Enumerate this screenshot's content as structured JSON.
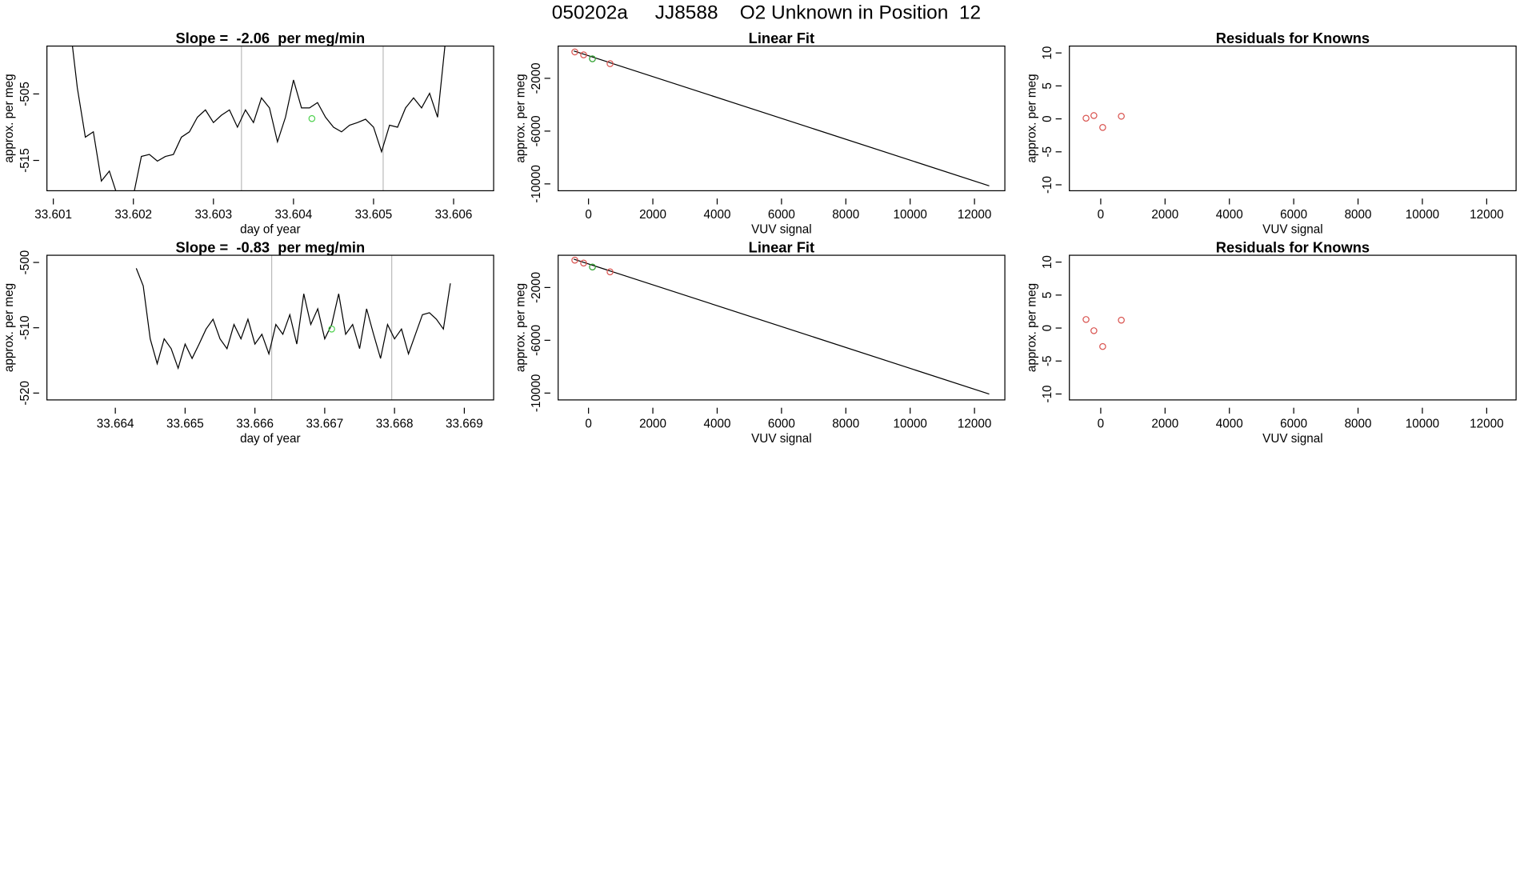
{
  "title": "050202a     JJ8588    O2 Unknown in Position  12",
  "chart_data": [
    {
      "type": "line",
      "title": "Slope =  -2.06  per meg/min",
      "xlabel": "day of year",
      "ylabel": "approx. per meg",
      "xlim": [
        33.60092,
        33.6065
      ],
      "ylim": [
        -519.56,
        -497.8
      ],
      "xticks": [
        33.601,
        33.602,
        33.603,
        33.604,
        33.605,
        33.606
      ],
      "yticks": [
        -505,
        -515
      ],
      "vlines": [
        33.60335,
        33.60512
      ],
      "vline_color": "#bbbbbb",
      "series": [
        {
          "color": "#000000",
          "mode": "line",
          "x": [
            33.6012,
            33.6013,
            33.6014,
            33.6015,
            33.6016,
            33.6017,
            33.6018,
            33.6019,
            33.602,
            33.6021,
            33.6022,
            33.6023,
            33.6024,
            33.6025,
            33.6026,
            33.6027,
            33.6028,
            33.6029,
            33.603,
            33.6031,
            33.6032,
            33.6033,
            33.6034,
            33.6035,
            33.6036,
            33.6037,
            33.6038,
            33.6039,
            33.604,
            33.6041,
            33.6042,
            33.6043,
            33.6044,
            33.6045,
            33.6046,
            33.6047,
            33.6048,
            33.6049,
            33.605,
            33.6051,
            33.6052,
            33.6053,
            33.6054,
            33.6055,
            33.6056,
            33.6057,
            33.6058,
            33.6059
          ],
          "values": [
            -493.8,
            -504.1,
            -511.5,
            -510.7,
            -518.1,
            -516.6,
            -520.3,
            -520.3,
            -520.3,
            -514.4,
            -514.1,
            -515.1,
            -514.4,
            -514.1,
            -511.5,
            -510.7,
            -508.5,
            -507.4,
            -509.3,
            -508.2,
            -507.4,
            -510.0,
            -507.4,
            -509.3,
            -505.6,
            -507.1,
            -512.2,
            -508.5,
            -502.9,
            -507.1,
            -507.1,
            -506.3,
            -508.5,
            -510.0,
            -510.7,
            -509.7,
            -509.3,
            -508.8,
            -510.0,
            -513.7,
            -509.7,
            -510.0,
            -507.1,
            -505.6,
            -507.1,
            -504.9,
            -508.5,
            -496.8
          ]
        },
        {
          "color": "#4fd14f",
          "mode": "points",
          "x": [
            33.60423
          ],
          "values": [
            -508.7
          ]
        }
      ]
    },
    {
      "type": "scatter",
      "title": "Linear Fit",
      "xlabel": "VUV signal",
      "ylabel": "approx. per meg",
      "xlim": [
        -944,
        12944
      ],
      "ylim": [
        -10519,
        444
      ],
      "xticks": [
        0,
        2000,
        4000,
        6000,
        8000,
        10000,
        12000
      ],
      "yticks": [
        -2000,
        -6000,
        -10000
      ],
      "series": [
        {
          "color": "#000000",
          "mode": "line",
          "x": [
            -457,
            12458
          ],
          "values": [
            74,
            -10148
          ]
        },
        {
          "color": "#d9534f",
          "mode": "points",
          "x": [
            -426,
            -152,
            670
          ],
          "values": [
            0,
            -222,
            -889
          ]
        },
        {
          "color": "#2ca02c",
          "mode": "points",
          "x": [
            122
          ],
          "values": [
            -519
          ]
        }
      ]
    },
    {
      "type": "scatter",
      "title": "Residuals for Knowns",
      "xlabel": "VUV signal",
      "ylabel": "approx. per meg",
      "xlim": [
        -975,
        12914
      ],
      "ylim": [
        -10.9,
        11.04
      ],
      "xticks": [
        0,
        2000,
        4000,
        6000,
        8000,
        10000,
        12000
      ],
      "yticks": [
        -10,
        -5,
        0,
        5,
        10
      ],
      "series": [
        {
          "color": "#d9534f",
          "mode": "points",
          "x": [
            -457,
            -213,
            61,
            640
          ],
          "values": [
            0.1,
            0.5,
            -1.3,
            0.4
          ]
        }
      ]
    },
    {
      "type": "line",
      "title": "Slope =  -0.83  per meg/min",
      "xlabel": "day of year",
      "ylabel": "approx. per meg",
      "xlim": [
        33.66302,
        33.66942
      ],
      "ylim": [
        -521.05,
        -498.9
      ],
      "xticks": [
        33.664,
        33.665,
        33.666,
        33.667,
        33.668,
        33.669
      ],
      "yticks": [
        -500,
        -510,
        -520
      ],
      "vlines": [
        33.66624,
        33.66796
      ],
      "vline_color": "#bbbbbb",
      "series": [
        {
          "color": "#000000",
          "mode": "line",
          "x": [
            33.6643,
            33.6644,
            33.6645,
            33.6646,
            33.6647,
            33.6648,
            33.6649,
            33.665,
            33.6651,
            33.6652,
            33.6653,
            33.6654,
            33.6655,
            33.6656,
            33.6657,
            33.6658,
            33.6659,
            33.666,
            33.6661,
            33.6662,
            33.6663,
            33.6664,
            33.6665,
            33.6666,
            33.6667,
            33.6668,
            33.6669,
            33.667,
            33.6671,
            33.6672,
            33.6673,
            33.6674,
            33.6675,
            33.6676,
            33.6677,
            33.6678,
            33.6679,
            33.668,
            33.6681,
            33.6682,
            33.6683,
            33.6684,
            33.6685,
            33.6686,
            33.6687,
            33.6688
          ],
          "values": [
            -500.9,
            -503.6,
            -511.7,
            -515.5,
            -511.7,
            -513.2,
            -516.2,
            -512.5,
            -514.7,
            -512.5,
            -510.2,
            -508.7,
            -511.7,
            -513.2,
            -509.5,
            -511.7,
            -508.7,
            -512.5,
            -511.0,
            -514.0,
            -509.5,
            -511.0,
            -508.0,
            -512.5,
            -504.8,
            -509.5,
            -507.1,
            -511.7,
            -509.5,
            -504.8,
            -511.0,
            -509.5,
            -513.2,
            -507.1,
            -511.0,
            -514.7,
            -509.5,
            -511.7,
            -510.2,
            -514.0,
            -511.0,
            -508.0,
            -507.7,
            -508.7,
            -510.2,
            -503.2
          ]
        },
        {
          "color": "#4fd14f",
          "mode": "points",
          "x": [
            33.6671
          ],
          "values": [
            -510.2
          ]
        }
      ]
    },
    {
      "type": "scatter",
      "title": "Linear Fit",
      "xlabel": "VUV signal",
      "ylabel": "approx. per meg",
      "xlim": [
        -944,
        12944
      ],
      "ylim": [
        -10519,
        444
      ],
      "xticks": [
        0,
        2000,
        4000,
        6000,
        8000,
        10000,
        12000
      ],
      "yticks": [
        -2000,
        -6000,
        -10000
      ],
      "series": [
        {
          "color": "#000000",
          "mode": "line",
          "x": [
            -457,
            12458
          ],
          "values": [
            148,
            -10074
          ]
        },
        {
          "color": "#d9534f",
          "mode": "points",
          "x": [
            -426,
            -152,
            670
          ],
          "values": [
            74,
            -148,
            -815
          ]
        },
        {
          "color": "#2ca02c",
          "mode": "points",
          "x": [
            122
          ],
          "values": [
            -444
          ]
        }
      ]
    },
    {
      "type": "scatter",
      "title": "Residuals for Knowns",
      "xlabel": "VUV signal",
      "ylabel": "approx. per meg",
      "xlim": [
        -975,
        12914
      ],
      "ylim": [
        -10.9,
        11.04
      ],
      "xticks": [
        0,
        2000,
        4000,
        6000,
        8000,
        10000,
        12000
      ],
      "yticks": [
        -10,
        -5,
        0,
        5,
        10
      ],
      "series": [
        {
          "color": "#d9534f",
          "mode": "points",
          "x": [
            -457,
            -213,
            61,
            640
          ],
          "values": [
            1.3,
            -0.4,
            -2.8,
            1.2
          ]
        }
      ]
    }
  ]
}
